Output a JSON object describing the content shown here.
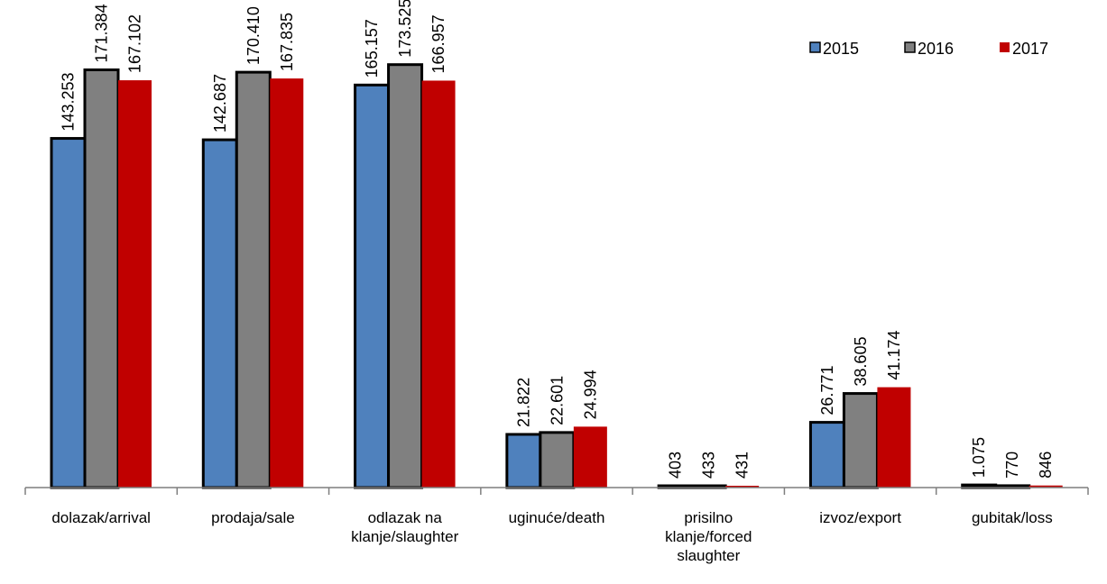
{
  "chart_data": {
    "type": "bar",
    "title": "",
    "xlabel": "",
    "ylabel": "",
    "categories": [
      [
        "dolazak/arrival"
      ],
      [
        "prodaja/sale"
      ],
      [
        "odlazak na",
        "klanje/slaughter"
      ],
      [
        "uginuće/death"
      ],
      [
        "prisilno",
        "klanje/forced",
        "slaughter"
      ],
      [
        "izvoz/export"
      ],
      [
        "gubitak/loss"
      ]
    ],
    "series": [
      {
        "name": "2015",
        "color": "#4f81bd",
        "values": [
          143253,
          142687,
          165157,
          21822,
          403,
          26771,
          1075
        ],
        "labels": [
          "143.253",
          "142.687",
          "165.157",
          "21.822",
          "403",
          "26.771",
          "1.075"
        ]
      },
      {
        "name": "2016",
        "color": "#808080",
        "values": [
          171384,
          170410,
          173525,
          22601,
          433,
          38605,
          770
        ],
        "labels": [
          "171.384",
          "170.410",
          "173.525",
          "22.601",
          "433",
          "38.605",
          "770"
        ]
      },
      {
        "name": "2017",
        "color": "#c00000",
        "values": [
          167102,
          167835,
          166957,
          24994,
          431,
          41174,
          846
        ],
        "labels": [
          "167.102",
          "167.835",
          "166.957",
          "24.994",
          "431",
          "41.174",
          "846"
        ]
      }
    ],
    "ylim": [
      0,
      176000
    ],
    "grid": false,
    "legend_position": "top-right"
  }
}
